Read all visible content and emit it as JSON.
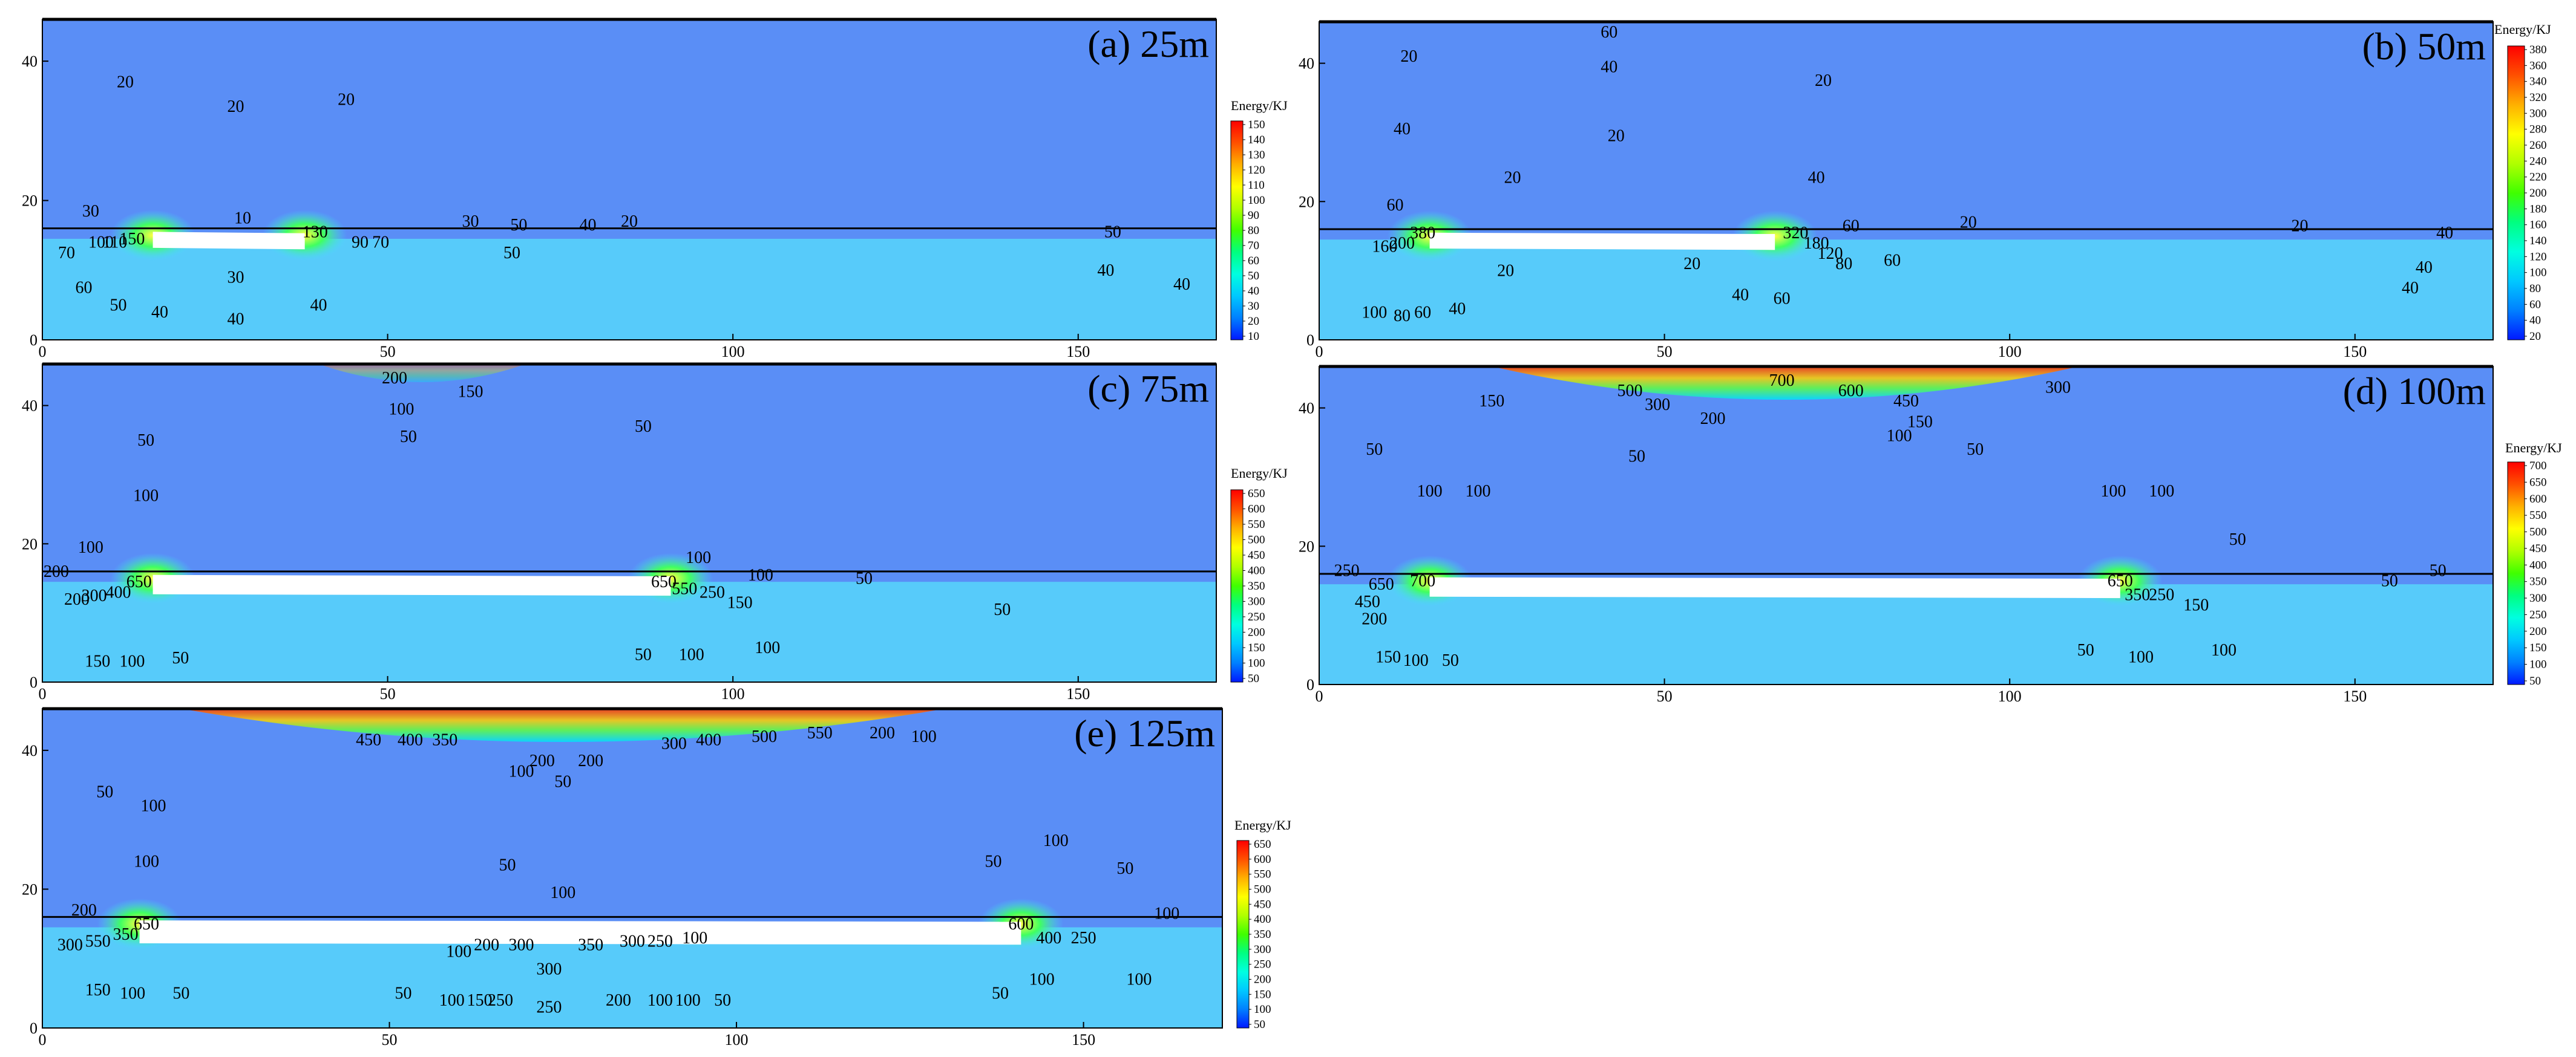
{
  "figure": {
    "colormap": [
      "#0018ff",
      "#0080ff",
      "#00c8ff",
      "#00ffe0",
      "#00ff80",
      "#40ff00",
      "#b0ff00",
      "#ffff00",
      "#ffb000",
      "#ff5000",
      "#ff0000"
    ],
    "background_color": "#4f87f5",
    "upper_fill_color": "#5a8ef6",
    "lower_fill_color": "#55fdfd"
  },
  "chart_data": [
    {
      "id": "a",
      "type": "heatmap",
      "title": "(a) 25m",
      "xlim": [
        0,
        170
      ],
      "ylim": [
        0,
        46
      ],
      "xticks": [
        "0",
        "50",
        "100",
        "150"
      ],
      "yticks": [
        "0",
        "20",
        "40"
      ],
      "colorbar": {
        "title": "Energy/KJ",
        "levels": [
          "150",
          "140",
          "130",
          "120",
          "110",
          "100",
          "90",
          "80",
          "70",
          "60",
          "50",
          "40",
          "30",
          "20",
          "10"
        ]
      },
      "excavation": [
        [
          16,
          15.5
        ],
        [
          38,
          13
        ]
      ],
      "contour_labels": [
        {
          "x": 12,
          "y": 37,
          "text": "20"
        },
        {
          "x": 28,
          "y": 33.5,
          "text": "20"
        },
        {
          "x": 44,
          "y": 34.5,
          "text": "20"
        },
        {
          "x": 7,
          "y": 18.5,
          "text": "30"
        },
        {
          "x": 29,
          "y": 17.5,
          "text": "10"
        },
        {
          "x": 39.5,
          "y": 15.5,
          "text": "130"
        },
        {
          "x": 62,
          "y": 17,
          "text": "30"
        },
        {
          "x": 69,
          "y": 16.5,
          "text": "50"
        },
        {
          "x": 79,
          "y": 16.5,
          "text": "40"
        },
        {
          "x": 85,
          "y": 17,
          "text": "20"
        },
        {
          "x": 155,
          "y": 15.5,
          "text": "50"
        },
        {
          "x": 3.5,
          "y": 12.5,
          "text": "70"
        },
        {
          "x": 8.5,
          "y": 14,
          "text": "100"
        },
        {
          "x": 10.5,
          "y": 14,
          "text": "110"
        },
        {
          "x": 13,
          "y": 14.5,
          "text": "150"
        },
        {
          "x": 49,
          "y": 14,
          "text": "70"
        },
        {
          "x": 46,
          "y": 14,
          "text": "90"
        },
        {
          "x": 68,
          "y": 12.5,
          "text": "50"
        },
        {
          "x": 6,
          "y": 7.5,
          "text": "60"
        },
        {
          "x": 11,
          "y": 5,
          "text": "50"
        },
        {
          "x": 17,
          "y": 4,
          "text": "40"
        },
        {
          "x": 28,
          "y": 9,
          "text": "30"
        },
        {
          "x": 40,
          "y": 5,
          "text": "40"
        },
        {
          "x": 28,
          "y": 3,
          "text": "40"
        },
        {
          "x": 154,
          "y": 10,
          "text": "40"
        },
        {
          "x": 165,
          "y": 8,
          "text": "40"
        }
      ]
    },
    {
      "id": "b",
      "type": "heatmap",
      "title": "(b) 50m",
      "xlim": [
        0,
        170
      ],
      "ylim": [
        0,
        46
      ],
      "xticks": [
        "0",
        "50",
        "100",
        "150"
      ],
      "yticks": [
        "0",
        "20",
        "40"
      ],
      "colorbar": {
        "title": "Energy/KJ",
        "levels": [
          "380",
          "360",
          "340",
          "320",
          "300",
          "280",
          "260",
          "240",
          "220",
          "200",
          "180",
          "160",
          "140",
          "120",
          "100",
          "80",
          "60",
          "40",
          "20"
        ]
      },
      "excavation": [
        [
          16,
          15.5
        ],
        [
          66,
          13
        ]
      ],
      "contour_labels": [
        {
          "x": 42,
          "y": 44.5,
          "text": "60"
        },
        {
          "x": 42,
          "y": 39.5,
          "text": "40"
        },
        {
          "x": 13,
          "y": 41,
          "text": "20"
        },
        {
          "x": 73,
          "y": 37.5,
          "text": "20"
        },
        {
          "x": 12,
          "y": 30.5,
          "text": "40"
        },
        {
          "x": 43,
          "y": 29.5,
          "text": "20"
        },
        {
          "x": 28,
          "y": 23.5,
          "text": "20"
        },
        {
          "x": 72,
          "y": 23.5,
          "text": "40"
        },
        {
          "x": 11,
          "y": 19.5,
          "text": "60"
        },
        {
          "x": 94,
          "y": 17,
          "text": "20"
        },
        {
          "x": 142,
          "y": 16.5,
          "text": "20"
        },
        {
          "x": 163,
          "y": 15.5,
          "text": "40"
        },
        {
          "x": 77,
          "y": 16.5,
          "text": "60"
        },
        {
          "x": 9.5,
          "y": 13.5,
          "text": "160"
        },
        {
          "x": 12,
          "y": 14,
          "text": "200"
        },
        {
          "x": 15,
          "y": 15.5,
          "text": "380"
        },
        {
          "x": 69,
          "y": 15.5,
          "text": "320"
        },
        {
          "x": 72,
          "y": 14,
          "text": "180"
        },
        {
          "x": 74,
          "y": 12.5,
          "text": "120"
        },
        {
          "x": 76,
          "y": 11,
          "text": "80"
        },
        {
          "x": 83,
          "y": 11.5,
          "text": "60"
        },
        {
          "x": 27,
          "y": 10,
          "text": "20"
        },
        {
          "x": 54,
          "y": 11,
          "text": "20"
        },
        {
          "x": 8,
          "y": 4,
          "text": "100"
        },
        {
          "x": 12,
          "y": 3.5,
          "text": "80"
        },
        {
          "x": 15,
          "y": 4,
          "text": "60"
        },
        {
          "x": 20,
          "y": 4.5,
          "text": "40"
        },
        {
          "x": 61,
          "y": 6.5,
          "text": "40"
        },
        {
          "x": 67,
          "y": 6,
          "text": "60"
        },
        {
          "x": 160,
          "y": 10.5,
          "text": "40"
        },
        {
          "x": 158,
          "y": 7.5,
          "text": "40"
        }
      ]
    },
    {
      "id": "c",
      "type": "heatmap",
      "title": "(c) 75m",
      "xlim": [
        0,
        170
      ],
      "ylim": [
        0,
        46
      ],
      "xticks": [
        "0",
        "50",
        "100",
        "150"
      ],
      "yticks": [
        "0",
        "20",
        "40"
      ],
      "colorbar": {
        "title": "Energy/KJ",
        "levels": [
          "650",
          "600",
          "550",
          "500",
          "450",
          "400",
          "350",
          "300",
          "250",
          "200",
          "150",
          "100",
          "50"
        ]
      },
      "excavation": [
        [
          16,
          15.5
        ],
        [
          91,
          12.5
        ]
      ],
      "contour_labels": [
        {
          "x": 51,
          "y": 44,
          "text": "200"
        },
        {
          "x": 62,
          "y": 42,
          "text": "150"
        },
        {
          "x": 52,
          "y": 39.5,
          "text": "100"
        },
        {
          "x": 53,
          "y": 35.5,
          "text": "50"
        },
        {
          "x": 15,
          "y": 35,
          "text": "50"
        },
        {
          "x": 87,
          "y": 37,
          "text": "50"
        },
        {
          "x": 15,
          "y": 27,
          "text": "100"
        },
        {
          "x": 7,
          "y": 19.5,
          "text": "100"
        },
        {
          "x": 95,
          "y": 18,
          "text": "100"
        },
        {
          "x": 2,
          "y": 16,
          "text": "200"
        },
        {
          "x": 14,
          "y": 14.5,
          "text": "650"
        },
        {
          "x": 90,
          "y": 14.5,
          "text": "650"
        },
        {
          "x": 104,
          "y": 15.5,
          "text": "100"
        },
        {
          "x": 119,
          "y": 15,
          "text": "50"
        },
        {
          "x": 5,
          "y": 12,
          "text": "200"
        },
        {
          "x": 7.5,
          "y": 12.5,
          "text": "300"
        },
        {
          "x": 11,
          "y": 13,
          "text": "400"
        },
        {
          "x": 93,
          "y": 13.5,
          "text": "550"
        },
        {
          "x": 97,
          "y": 13,
          "text": "250"
        },
        {
          "x": 101,
          "y": 11.5,
          "text": "150"
        },
        {
          "x": 139,
          "y": 10.5,
          "text": "50"
        },
        {
          "x": 8,
          "y": 3,
          "text": "150"
        },
        {
          "x": 13,
          "y": 3,
          "text": "100"
        },
        {
          "x": 20,
          "y": 3.5,
          "text": "50"
        },
        {
          "x": 87,
          "y": 4,
          "text": "50"
        },
        {
          "x": 94,
          "y": 4,
          "text": "100"
        },
        {
          "x": 105,
          "y": 5,
          "text": "100"
        }
      ]
    },
    {
      "id": "d",
      "type": "heatmap",
      "title": "(d) 100m",
      "xlim": [
        0,
        170
      ],
      "ylim": [
        0,
        46
      ],
      "xticks": [
        "0",
        "50",
        "100",
        "150"
      ],
      "yticks": [
        "0",
        "20",
        "40"
      ],
      "colorbar": {
        "title": "Energy/KJ",
        "levels": [
          "700",
          "650",
          "600",
          "550",
          "500",
          "450",
          "400",
          "350",
          "300",
          "250",
          "200",
          "150",
          "100",
          "50"
        ]
      },
      "excavation": [
        [
          16,
          15.5
        ],
        [
          116,
          12.5
        ]
      ],
      "contour_labels": [
        {
          "x": 67,
          "y": 44,
          "text": "700"
        },
        {
          "x": 45,
          "y": 42.5,
          "text": "500"
        },
        {
          "x": 77,
          "y": 42.5,
          "text": "600"
        },
        {
          "x": 49,
          "y": 40.5,
          "text": "300"
        },
        {
          "x": 85,
          "y": 41,
          "text": "450"
        },
        {
          "x": 57,
          "y": 38.5,
          "text": "200"
        },
        {
          "x": 87,
          "y": 38,
          "text": "150"
        },
        {
          "x": 84,
          "y": 36,
          "text": "100"
        },
        {
          "x": 25,
          "y": 41,
          "text": "150"
        },
        {
          "x": 107,
          "y": 43,
          "text": "300"
        },
        {
          "x": 46,
          "y": 33,
          "text": "50"
        },
        {
          "x": 95,
          "y": 34,
          "text": "50"
        },
        {
          "x": 8,
          "y": 34,
          "text": "50"
        },
        {
          "x": 16,
          "y": 28,
          "text": "100"
        },
        {
          "x": 23,
          "y": 28,
          "text": "100"
        },
        {
          "x": 115,
          "y": 28,
          "text": "100"
        },
        {
          "x": 122,
          "y": 28,
          "text": "100"
        },
        {
          "x": 133,
          "y": 21,
          "text": "50"
        },
        {
          "x": 4,
          "y": 16.5,
          "text": "250"
        },
        {
          "x": 9,
          "y": 14.5,
          "text": "650"
        },
        {
          "x": 15,
          "y": 15,
          "text": "700"
        },
        {
          "x": 116,
          "y": 15,
          "text": "650"
        },
        {
          "x": 118.5,
          "y": 13,
          "text": "350"
        },
        {
          "x": 122,
          "y": 13,
          "text": "250"
        },
        {
          "x": 127,
          "y": 11.5,
          "text": "150"
        },
        {
          "x": 7,
          "y": 12,
          "text": "450"
        },
        {
          "x": 8,
          "y": 9.5,
          "text": "200"
        },
        {
          "x": 155,
          "y": 15,
          "text": "50"
        },
        {
          "x": 162,
          "y": 16.5,
          "text": "50"
        },
        {
          "x": 10,
          "y": 4,
          "text": "150"
        },
        {
          "x": 14,
          "y": 3.5,
          "text": "100"
        },
        {
          "x": 19,
          "y": 3.5,
          "text": "50"
        },
        {
          "x": 111,
          "y": 5,
          "text": "50"
        },
        {
          "x": 119,
          "y": 4,
          "text": "100"
        },
        {
          "x": 131,
          "y": 5,
          "text": "100"
        }
      ]
    },
    {
      "id": "e",
      "type": "heatmap",
      "title": "(e) 125m",
      "xlim": [
        0,
        170
      ],
      "ylim": [
        0,
        46
      ],
      "xticks": [
        "0",
        "50",
        "100",
        "150"
      ],
      "yticks": [
        "0",
        "20",
        "40"
      ],
      "colorbar": {
        "title": "Energy/KJ",
        "levels": [
          "650",
          "600",
          "550",
          "500",
          "450",
          "400",
          "350",
          "300",
          "250",
          "200",
          "150",
          "100",
          "50"
        ]
      },
      "excavation": [
        [
          14,
          15.5
        ],
        [
          141,
          12
        ]
      ],
      "contour_labels": [
        {
          "x": 47,
          "y": 41.5,
          "text": "450"
        },
        {
          "x": 53,
          "y": 41.5,
          "text": "400"
        },
        {
          "x": 58,
          "y": 41.5,
          "text": "350"
        },
        {
          "x": 91,
          "y": 41,
          "text": "300"
        },
        {
          "x": 96,
          "y": 41.5,
          "text": "400"
        },
        {
          "x": 104,
          "y": 42,
          "text": "500"
        },
        {
          "x": 112,
          "y": 42.5,
          "text": "550"
        },
        {
          "x": 121,
          "y": 42.5,
          "text": "200"
        },
        {
          "x": 127,
          "y": 42,
          "text": "100"
        },
        {
          "x": 72,
          "y": 38.5,
          "text": "200"
        },
        {
          "x": 79,
          "y": 38.5,
          "text": "200"
        },
        {
          "x": 69,
          "y": 37,
          "text": "100"
        },
        {
          "x": 75,
          "y": 35.5,
          "text": "50"
        },
        {
          "x": 9,
          "y": 34,
          "text": "50"
        },
        {
          "x": 16,
          "y": 32,
          "text": "100"
        },
        {
          "x": 67,
          "y": 23.5,
          "text": "50"
        },
        {
          "x": 75,
          "y": 19.5,
          "text": "100"
        },
        {
          "x": 15,
          "y": 24,
          "text": "100"
        },
        {
          "x": 137,
          "y": 24,
          "text": "50"
        },
        {
          "x": 146,
          "y": 27,
          "text": "100"
        },
        {
          "x": 156,
          "y": 23,
          "text": "50"
        },
        {
          "x": 162,
          "y": 16.5,
          "text": "100"
        },
        {
          "x": 6,
          "y": 17,
          "text": "200"
        },
        {
          "x": 15,
          "y": 15,
          "text": "650"
        },
        {
          "x": 141,
          "y": 15,
          "text": "600"
        },
        {
          "x": 4,
          "y": 12,
          "text": "300"
        },
        {
          "x": 8,
          "y": 12.5,
          "text": "550"
        },
        {
          "x": 12,
          "y": 13.5,
          "text": "350"
        },
        {
          "x": 145,
          "y": 13,
          "text": "400"
        },
        {
          "x": 150,
          "y": 13,
          "text": "250"
        },
        {
          "x": 60,
          "y": 11,
          "text": "100"
        },
        {
          "x": 64,
          "y": 12,
          "text": "200"
        },
        {
          "x": 69,
          "y": 12,
          "text": "300"
        },
        {
          "x": 79,
          "y": 12,
          "text": "350"
        },
        {
          "x": 85,
          "y": 12.5,
          "text": "300"
        },
        {
          "x": 89,
          "y": 12.5,
          "text": "250"
        },
        {
          "x": 94,
          "y": 13,
          "text": "100"
        },
        {
          "x": 73,
          "y": 8.5,
          "text": "300"
        },
        {
          "x": 73,
          "y": 3,
          "text": "250"
        },
        {
          "x": 8,
          "y": 5.5,
          "text": "150"
        },
        {
          "x": 13,
          "y": 5,
          "text": "100"
        },
        {
          "x": 20,
          "y": 5,
          "text": "50"
        },
        {
          "x": 52,
          "y": 5,
          "text": "50"
        },
        {
          "x": 59,
          "y": 4,
          "text": "100"
        },
        {
          "x": 63,
          "y": 4,
          "text": "150"
        },
        {
          "x": 66,
          "y": 4,
          "text": "250"
        },
        {
          "x": 83,
          "y": 4,
          "text": "200"
        },
        {
          "x": 89,
          "y": 4,
          "text": "100"
        },
        {
          "x": 93,
          "y": 4,
          "text": "100"
        },
        {
          "x": 98,
          "y": 4,
          "text": "50"
        },
        {
          "x": 138,
          "y": 5,
          "text": "50"
        },
        {
          "x": 144,
          "y": 7,
          "text": "100"
        },
        {
          "x": 158,
          "y": 7,
          "text": "100"
        }
      ]
    }
  ]
}
